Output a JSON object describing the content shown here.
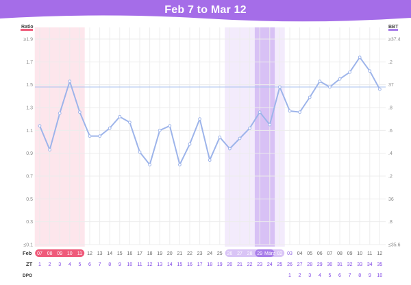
{
  "header": {
    "title": "Feb 7  to  Mar 12",
    "color": "#a56de8"
  },
  "chart_data": {
    "type": "line",
    "left_axis": {
      "name": "Ratio",
      "ticks": [
        "≥1.9",
        "1.7",
        "1.5",
        "1.3",
        "1.1",
        "0.9",
        "0.7",
        "0.5",
        "0.3",
        "≤0.1"
      ]
    },
    "right_axis": {
      "name": "BBT",
      "ticks": [
        "≥37.4",
        ".2",
        "37",
        ".8",
        ".6",
        ".4",
        ".2",
        "36",
        ".8",
        "≤35.6"
      ]
    },
    "day_row_label": "Feb",
    "day_labels": [
      "07",
      "08",
      "09",
      "10",
      "11",
      "12",
      "13",
      "14",
      "15",
      "16",
      "17",
      "18",
      "19",
      "20",
      "21",
      "22",
      "23",
      "24",
      "25",
      "26",
      "27",
      "28",
      "29",
      "März",
      "02",
      "03",
      "04",
      "05",
      "06",
      "07",
      "08",
      "09",
      "10",
      "11",
      "12"
    ],
    "zt_label": "ZT",
    "zt": [
      "1",
      "2",
      "3",
      "4",
      "5",
      "6",
      "7",
      "8",
      "9",
      "10",
      "11",
      "12",
      "13",
      "14",
      "15",
      "16",
      "17",
      "18",
      "19",
      "20",
      "21",
      "22",
      "23",
      "24",
      "25",
      "26",
      "27",
      "28",
      "29",
      "30",
      "31",
      "32",
      "33",
      "34",
      "35"
    ],
    "dpo_label": "DPO",
    "dpo": [
      "",
      "",
      "",
      "",
      "",
      "",
      "",
      "",
      "",
      "",
      "",
      "",
      "",
      "",
      "",
      "",
      "",
      "",
      "",
      "",
      "",
      "",
      "",
      "",
      "",
      "1",
      "2",
      "3",
      "4",
      "5",
      "6",
      "7",
      "8",
      "9",
      "10"
    ],
    "ratio_values": [
      1.14,
      0.93,
      1.25,
      1.53,
      1.26,
      1.05,
      1.05,
      1.12,
      1.22,
      1.17,
      0.91,
      0.8,
      1.1,
      1.14,
      0.8,
      0.98,
      1.2,
      0.84,
      1.04,
      0.94,
      1.03,
      1.12,
      1.26,
      1.15,
      1.48,
      1.27,
      1.26,
      1.39,
      1.53,
      1.48,
      1.55,
      1.61,
      1.74,
      1.62,
      1.46
    ],
    "threshold": 1.48,
    "ylim": [
      0.1,
      1.9
    ],
    "highlights": {
      "period": {
        "from_index": 0,
        "to_index": 4,
        "color": "#fde6ec",
        "label_color": "#ef5a7a"
      },
      "fertile": {
        "from_index": 19,
        "to_index": 24,
        "color": "#f3ebfc"
      },
      "peak": {
        "from_index": 22,
        "to_index": 23,
        "color": "#d8c1f5"
      },
      "label_color": "#a77ce9"
    },
    "line_color": "#9db4ea",
    "threshold_color": "#a9c2ef",
    "grid": true
  }
}
